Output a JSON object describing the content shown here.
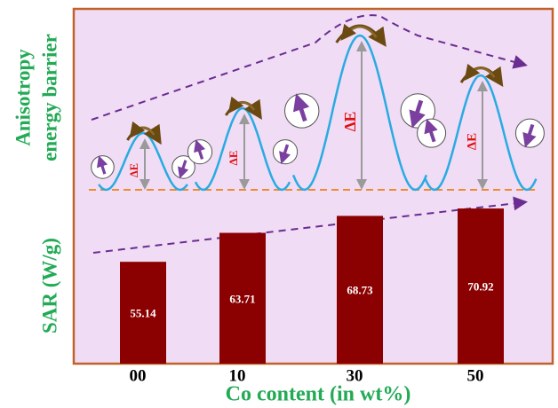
{
  "chart_data": {
    "type": "bar",
    "y_title": "SAR (W/g)",
    "upper_title": [
      "Anisotropy",
      "energy barrier"
    ],
    "x_title": "Co content (in wt%)",
    "categories": [
      "00",
      "10",
      "30",
      "50"
    ],
    "values": [
      55.14,
      63.71,
      68.73,
      70.92
    ],
    "energy_barrier_labels": [
      "ΔE",
      "ΔE",
      "ΔE",
      "ΔE"
    ],
    "color": "#8b0000",
    "ylim": [
      25,
      130
    ]
  }
}
